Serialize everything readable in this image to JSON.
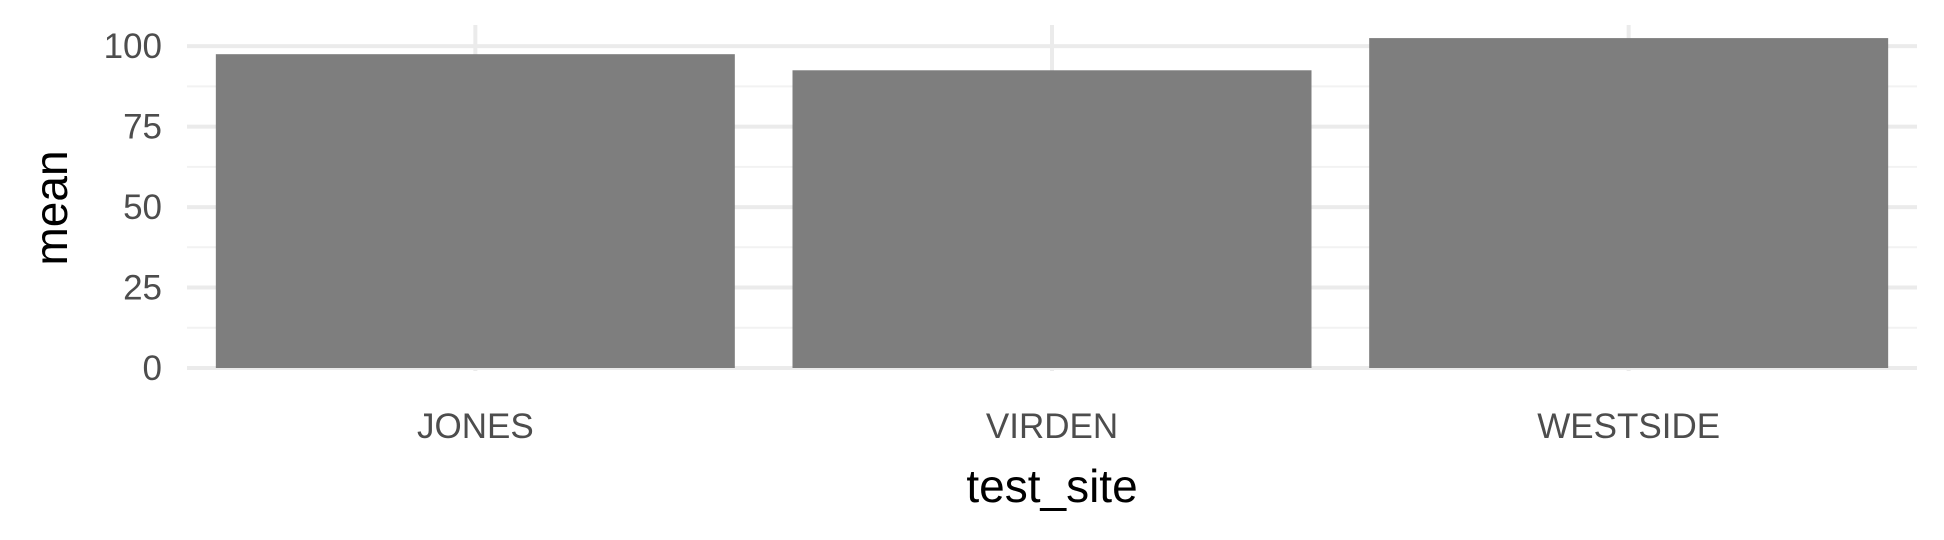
{
  "chart_data": {
    "type": "bar",
    "title": "",
    "xlabel": "test_site",
    "ylabel": "mean",
    "categories": [
      "JONES",
      "VIRDEN",
      "WESTSIDE"
    ],
    "values": [
      97.5,
      92.5,
      102.5
    ],
    "ylim": [
      0,
      107.5
    ],
    "y_ticks": [
      0,
      25,
      50,
      75,
      100
    ],
    "y_tick_labels": [
      "0",
      "25",
      "50",
      "75",
      "100"
    ],
    "grid": true,
    "legend": "none",
    "bar_color": "#7a7a7a",
    "grid_major_color": "#ebebeb",
    "grid_minor_color": "#f2f2f2"
  }
}
